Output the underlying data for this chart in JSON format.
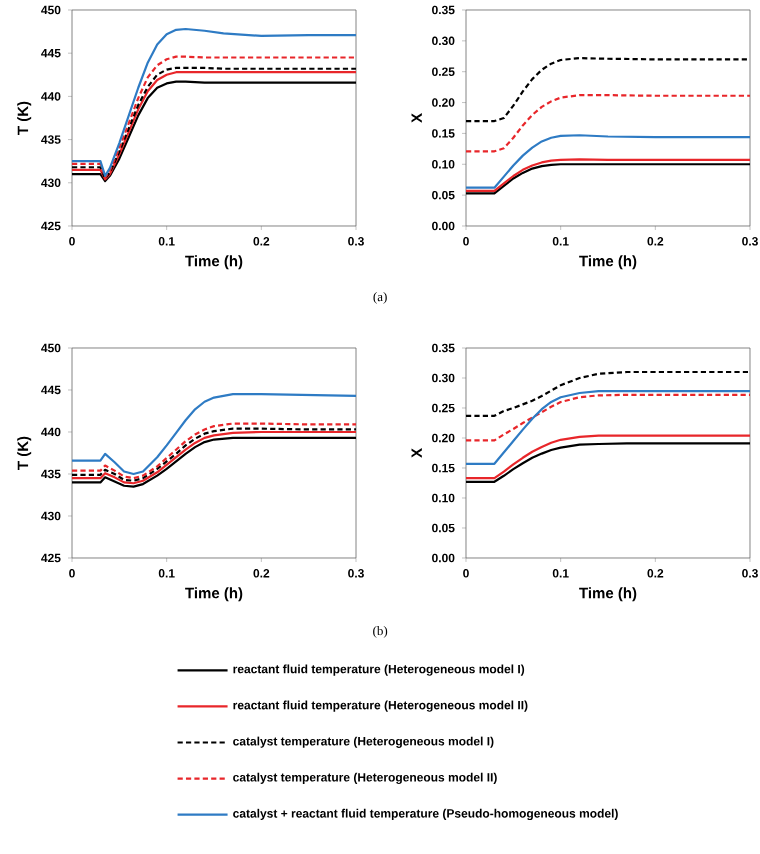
{
  "chart_data": [
    {
      "type": "line",
      "xlabel": "Time (h)",
      "ylabel": "T (K)",
      "xlim": [
        0,
        0.3
      ],
      "ylim": [
        425,
        450
      ],
      "xticks": [
        0,
        0.1,
        0.2,
        0.3
      ],
      "yticks": [
        425,
        430,
        435,
        440,
        445,
        450
      ],
      "annotations": [
        "(a)"
      ],
      "x": [
        0,
        0.03,
        0.035,
        0.04,
        0.05,
        0.06,
        0.07,
        0.08,
        0.09,
        0.1,
        0.11,
        0.12,
        0.14,
        0.16,
        0.2,
        0.25,
        0.3
      ],
      "series": [
        {
          "color": "#000000",
          "line_style": "solid",
          "values": [
            431.0,
            431.0,
            430.2,
            430.8,
            432.8,
            435.3,
            437.8,
            439.8,
            441.0,
            441.5,
            441.7,
            441.7,
            441.6,
            441.6,
            441.6,
            441.6,
            441.6
          ]
        },
        {
          "color": "#e8262a",
          "line_style": "solid",
          "values": [
            431.5,
            431.5,
            430.4,
            431.0,
            433.3,
            435.9,
            438.5,
            440.6,
            441.9,
            442.5,
            442.8,
            442.8,
            442.8,
            442.8,
            442.8,
            442.8,
            442.8
          ]
        },
        {
          "color": "#000000",
          "line_style": "dashed",
          "values": [
            431.8,
            431.8,
            430.5,
            431.2,
            433.6,
            436.3,
            439.0,
            441.1,
            442.5,
            443.1,
            443.3,
            443.3,
            443.3,
            443.2,
            443.2,
            443.2,
            443.2
          ]
        },
        {
          "color": "#e8262a",
          "line_style": "dashed",
          "values": [
            432.2,
            432.2,
            430.6,
            431.4,
            434.0,
            436.9,
            439.8,
            442.2,
            443.6,
            444.3,
            444.6,
            444.6,
            444.5,
            444.5,
            444.5,
            444.5,
            444.5
          ]
        },
        {
          "color": "#2e7bc4",
          "line_style": "solid",
          "values": [
            432.5,
            432.5,
            430.8,
            431.7,
            434.6,
            437.8,
            441.0,
            443.9,
            446.0,
            447.2,
            447.7,
            447.8,
            447.6,
            447.3,
            447.0,
            447.1,
            447.1
          ]
        }
      ]
    },
    {
      "type": "line",
      "xlabel": "Time (h)",
      "ylabel": "X",
      "xlim": [
        0,
        0.3
      ],
      "ylim": [
        0,
        0.35
      ],
      "xticks": [
        0,
        0.1,
        0.2,
        0.3
      ],
      "yticks": [
        {
          "value": 0,
          "label": "0.00"
        },
        {
          "value": 0.05,
          "label": "0.05"
        },
        {
          "value": 0.1,
          "label": "0.10"
        },
        {
          "value": 0.15,
          "label": "0.15"
        },
        {
          "value": 0.2,
          "label": "0.20"
        },
        {
          "value": 0.25,
          "label": "0.25"
        },
        {
          "value": 0.3,
          "label": "0.30"
        },
        {
          "value": 0.35,
          "label": "0.35"
        }
      ],
      "x": [
        0,
        0.03,
        0.04,
        0.05,
        0.06,
        0.07,
        0.08,
        0.09,
        0.1,
        0.12,
        0.15,
        0.2,
        0.3
      ],
      "series": [
        {
          "color": "#000000",
          "line_style": "solid",
          "values": [
            0.053,
            0.053,
            0.065,
            0.077,
            0.086,
            0.093,
            0.097,
            0.099,
            0.1,
            0.1,
            0.1,
            0.1,
            0.1
          ]
        },
        {
          "color": "#e8262a",
          "line_style": "solid",
          "values": [
            0.057,
            0.057,
            0.069,
            0.081,
            0.091,
            0.098,
            0.103,
            0.106,
            0.107,
            0.108,
            0.107,
            0.107,
            0.107
          ]
        },
        {
          "color": "#000000",
          "line_style": "dashed",
          "values": [
            0.17,
            0.17,
            0.175,
            0.195,
            0.218,
            0.238,
            0.253,
            0.263,
            0.269,
            0.272,
            0.271,
            0.27,
            0.27
          ]
        },
        {
          "color": "#e8262a",
          "line_style": "dashed",
          "values": [
            0.121,
            0.121,
            0.126,
            0.143,
            0.163,
            0.18,
            0.193,
            0.202,
            0.208,
            0.212,
            0.212,
            0.211,
            0.211
          ]
        },
        {
          "color": "#2e7bc4",
          "line_style": "solid",
          "values": [
            0.062,
            0.062,
            0.08,
            0.098,
            0.114,
            0.127,
            0.137,
            0.143,
            0.146,
            0.147,
            0.145,
            0.144,
            0.144
          ]
        }
      ]
    },
    {
      "type": "line",
      "xlabel": "Time (h)",
      "ylabel": "T (K)",
      "xlim": [
        0,
        0.3
      ],
      "ylim": [
        425,
        450
      ],
      "xticks": [
        0,
        0.1,
        0.2,
        0.3
      ],
      "yticks": [
        425,
        430,
        435,
        440,
        445,
        450
      ],
      "annotations": [
        "(b)"
      ],
      "x": [
        0,
        0.03,
        0.035,
        0.045,
        0.055,
        0.065,
        0.075,
        0.09,
        0.1,
        0.11,
        0.12,
        0.13,
        0.14,
        0.15,
        0.17,
        0.2,
        0.25,
        0.3
      ],
      "series": [
        {
          "color": "#000000",
          "line_style": "solid",
          "values": [
            434.0,
            434.0,
            434.6,
            434.1,
            433.6,
            433.5,
            433.8,
            434.8,
            435.6,
            436.5,
            437.4,
            438.2,
            438.8,
            439.1,
            439.3,
            439.3,
            439.3,
            439.3
          ]
        },
        {
          "color": "#e8262a",
          "line_style": "solid",
          "values": [
            434.5,
            434.5,
            435.1,
            434.6,
            434.0,
            433.9,
            434.2,
            435.2,
            436.1,
            437.0,
            437.9,
            438.7,
            439.3,
            439.6,
            439.9,
            440.0,
            440.0,
            440.0
          ]
        },
        {
          "color": "#000000",
          "line_style": "dashed",
          "values": [
            434.9,
            434.9,
            435.5,
            435.0,
            434.3,
            434.2,
            434.5,
            435.6,
            436.5,
            437.4,
            438.4,
            439.2,
            439.8,
            440.1,
            440.4,
            440.4,
            440.3,
            440.3
          ]
        },
        {
          "color": "#e8262a",
          "line_style": "dashed",
          "values": [
            435.4,
            435.4,
            436.0,
            435.4,
            434.7,
            434.5,
            434.8,
            435.9,
            436.9,
            437.9,
            438.9,
            439.7,
            440.3,
            440.7,
            441.0,
            441.0,
            440.9,
            440.9
          ]
        },
        {
          "color": "#2e7bc4",
          "line_style": "solid",
          "values": [
            436.6,
            436.6,
            437.4,
            436.4,
            435.3,
            435.0,
            435.3,
            437.0,
            438.4,
            439.9,
            441.4,
            442.7,
            443.6,
            444.1,
            444.5,
            444.5,
            444.4,
            444.3
          ]
        }
      ]
    },
    {
      "type": "line",
      "xlabel": "Time (h)",
      "ylabel": "X",
      "xlim": [
        0,
        0.3
      ],
      "ylim": [
        0,
        0.35
      ],
      "xticks": [
        0,
        0.1,
        0.2,
        0.3
      ],
      "legend": "bottom",
      "yticks": [
        {
          "value": 0,
          "label": "0.00"
        },
        {
          "value": 0.05,
          "label": "0.05"
        },
        {
          "value": 0.1,
          "label": "0.10"
        },
        {
          "value": 0.15,
          "label": "0.15"
        },
        {
          "value": 0.2,
          "label": "0.20"
        },
        {
          "value": 0.25,
          "label": "0.25"
        },
        {
          "value": 0.3,
          "label": "0.30"
        },
        {
          "value": 0.35,
          "label": "0.35"
        }
      ],
      "x": [
        0,
        0.03,
        0.04,
        0.05,
        0.06,
        0.07,
        0.08,
        0.09,
        0.1,
        0.12,
        0.14,
        0.17,
        0.2,
        0.3
      ],
      "series": [
        {
          "name": "reactant fluid temperature (Heterogeneous model I)",
          "color": "#000000",
          "line_style": "solid",
          "values": [
            0.127,
            0.127,
            0.137,
            0.148,
            0.158,
            0.167,
            0.174,
            0.18,
            0.184,
            0.189,
            0.19,
            0.191,
            0.191,
            0.191
          ]
        },
        {
          "name": "reactant fluid temperature (Heterogeneous model II)",
          "color": "#e8262a",
          "line_style": "solid",
          "values": [
            0.133,
            0.133,
            0.144,
            0.156,
            0.167,
            0.177,
            0.185,
            0.192,
            0.197,
            0.202,
            0.204,
            0.204,
            0.204,
            0.204
          ]
        },
        {
          "name": "catalyst temperature (Heterogeneous model I)",
          "color": "#000000",
          "line_style": "dashed",
          "values": [
            0.237,
            0.237,
            0.245,
            0.25,
            0.256,
            0.262,
            0.27,
            0.279,
            0.288,
            0.3,
            0.307,
            0.31,
            0.31,
            0.31
          ]
        },
        {
          "name": "catalyst temperature (Heterogeneous model II)",
          "color": "#e8262a",
          "line_style": "dashed",
          "values": [
            0.196,
            0.196,
            0.206,
            0.215,
            0.225,
            0.234,
            0.243,
            0.252,
            0.26,
            0.268,
            0.271,
            0.272,
            0.272,
            0.272
          ]
        },
        {
          "name": "catalyst + reactant fluid temperature (Pseudo-homogeneous model)",
          "color": "#2e7bc4",
          "line_style": "solid",
          "values": [
            0.157,
            0.157,
            0.176,
            0.195,
            0.214,
            0.232,
            0.248,
            0.26,
            0.268,
            0.275,
            0.278,
            0.278,
            0.278,
            0.278
          ]
        }
      ]
    }
  ]
}
